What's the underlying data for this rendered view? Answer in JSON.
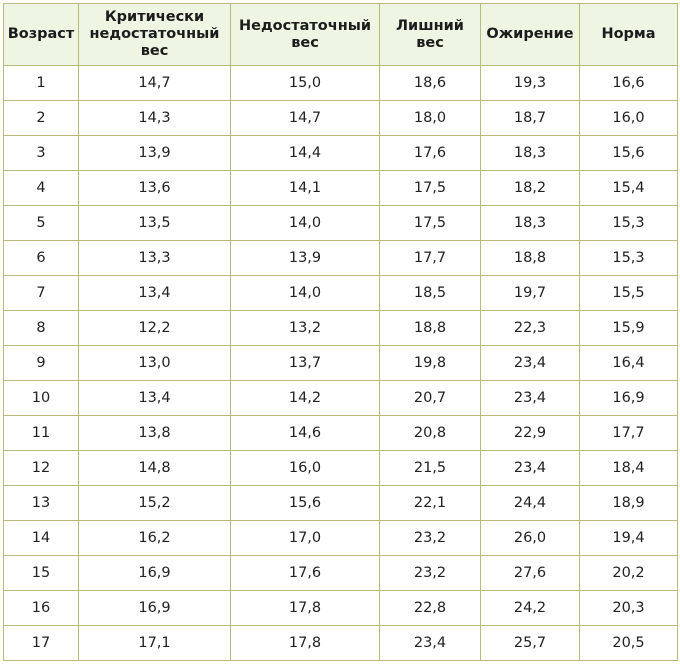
{
  "table": {
    "headers": [
      [
        "Возраст"
      ],
      [
        "Критически",
        "недостаточный",
        "вес"
      ],
      [
        "Недостаточный",
        "вес"
      ],
      [
        "Лишний",
        "вес"
      ],
      [
        "Ожирение"
      ],
      [
        "Норма"
      ]
    ],
    "rows": [
      [
        "1",
        "14,7",
        "15,0",
        "18,6",
        "19,3",
        "16,6"
      ],
      [
        "2",
        "14,3",
        "14,7",
        "18,0",
        "18,7",
        "16,0"
      ],
      [
        "3",
        "13,9",
        "14,4",
        "17,6",
        "18,3",
        "15,6"
      ],
      [
        "4",
        "13,6",
        "14,1",
        "17,5",
        "18,2",
        "15,4"
      ],
      [
        "5",
        "13,5",
        "14,0",
        "17,5",
        "18,3",
        "15,3"
      ],
      [
        "6",
        "13,3",
        "13,9",
        "17,7",
        "18,8",
        "15,3"
      ],
      [
        "7",
        "13,4",
        "14,0",
        "18,5",
        "19,7",
        "15,5"
      ],
      [
        "8",
        "12,2",
        "13,2",
        "18,8",
        "22,3",
        "15,9"
      ],
      [
        "9",
        "13,0",
        "13,7",
        "19,8",
        "23,4",
        "16,4"
      ],
      [
        "10",
        "13,4",
        "14,2",
        "20,7",
        "23,4",
        "16,9"
      ],
      [
        "11",
        "13,8",
        "14,6",
        "20,8",
        "22,9",
        "17,7"
      ],
      [
        "12",
        "14,8",
        "16,0",
        "21,5",
        "23,4",
        "18,4"
      ],
      [
        "13",
        "15,2",
        "15,6",
        "22,1",
        "24,4",
        "18,9"
      ],
      [
        "14",
        "16,2",
        "17,0",
        "23,2",
        "26,0",
        "19,4"
      ],
      [
        "15",
        "16,9",
        "17,6",
        "23,2",
        "27,6",
        "20,2"
      ],
      [
        "16",
        "16,9",
        "17,8",
        "22,8",
        "24,2",
        "20,3"
      ],
      [
        "17",
        "17,1",
        "17,8",
        "23,4",
        "25,7",
        "20,5"
      ]
    ]
  },
  "colors": {
    "header_background": "#eef5e2",
    "border": "#b9b97a",
    "text": "#222222"
  }
}
